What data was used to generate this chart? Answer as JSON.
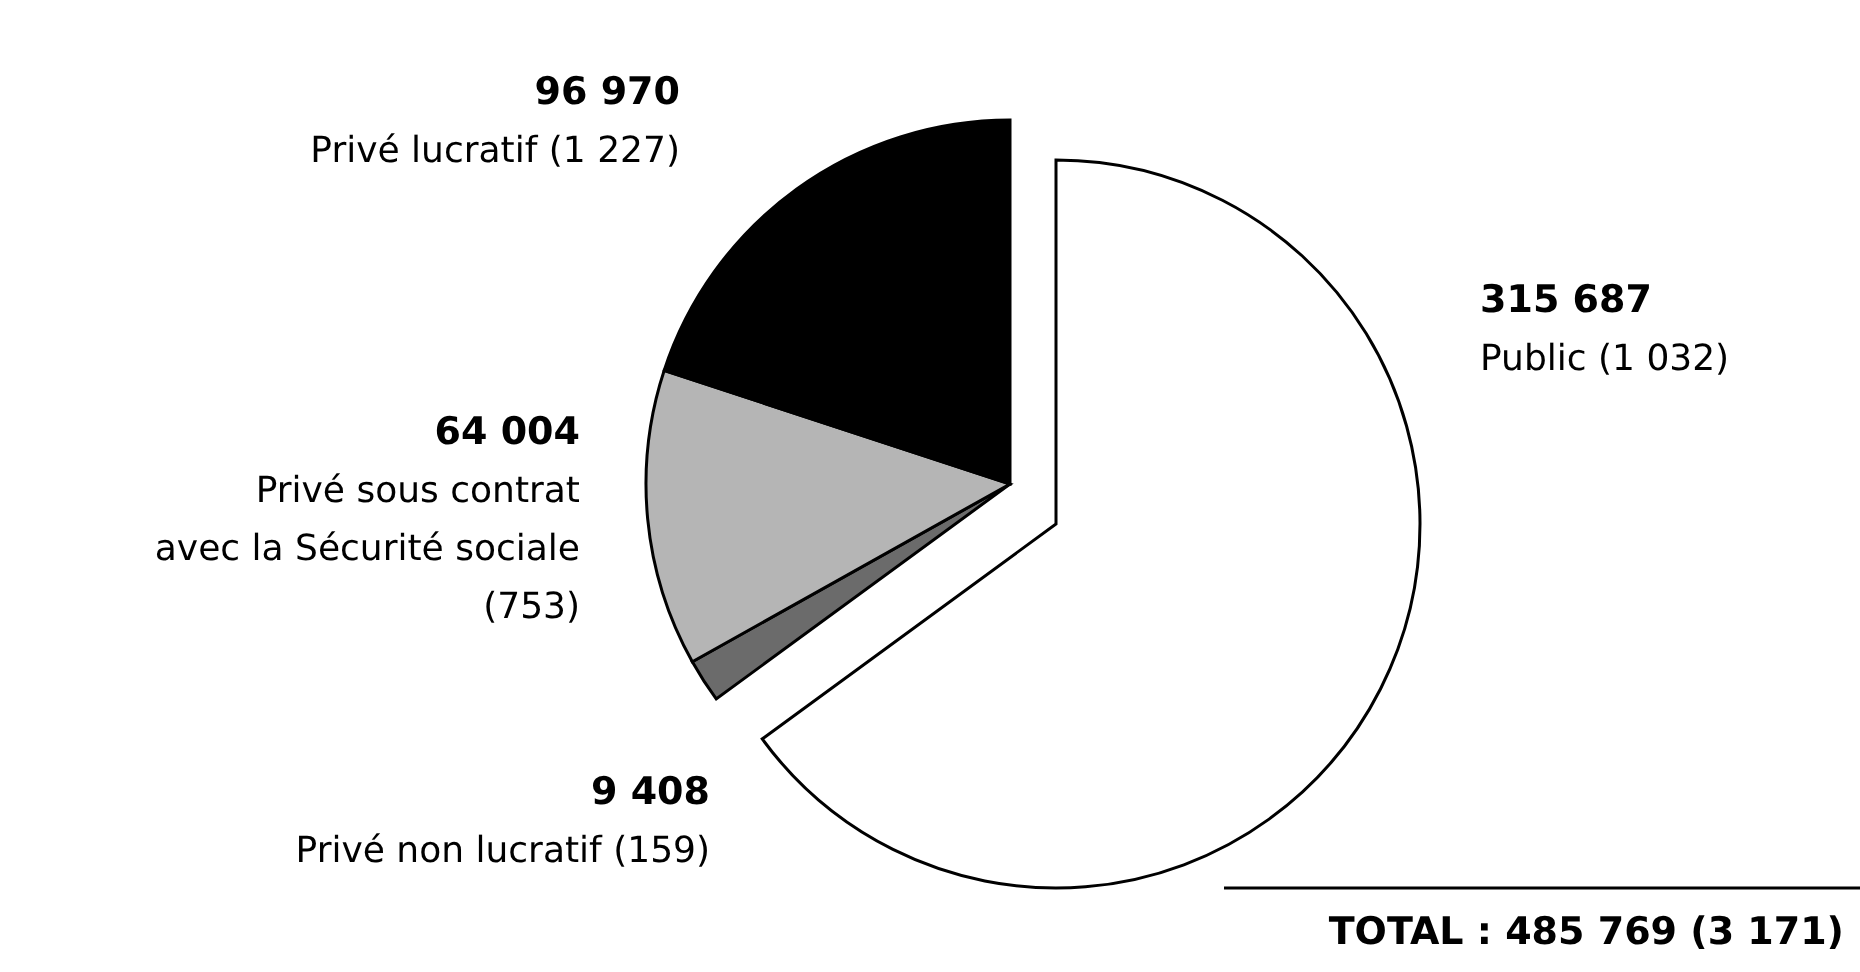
{
  "chart_data": {
    "type": "pie",
    "categories": [
      "Public (1 032)",
      "Privé non lucratif (159)",
      "Privé sous contrat\navec la Sécurité sociale\n(753)",
      "Privé lucratif (1 227)"
    ],
    "values": [
      315687,
      9408,
      64004,
      96970
    ],
    "value_labels": [
      "315 687",
      "9 408",
      "64 004",
      "96 970"
    ],
    "colors": [
      "#ffffff",
      "#6b6b6b",
      "#b5b5b5",
      "#000000"
    ],
    "annotations": [
      "TOTAL : 485 769 (3 171)"
    ]
  }
}
